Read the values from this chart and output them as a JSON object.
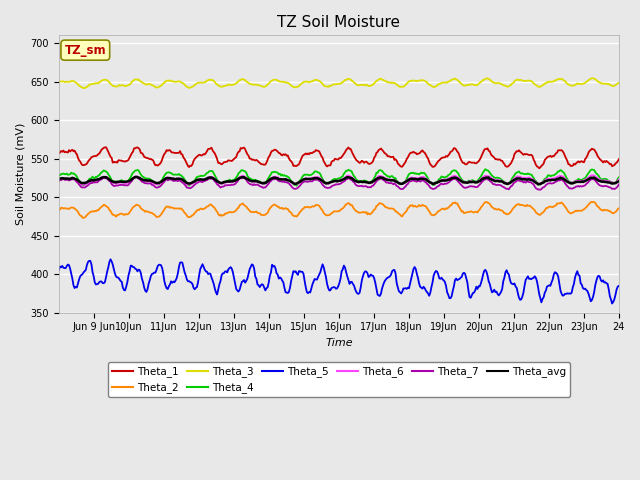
{
  "title": "TZ Soil Moisture",
  "xlabel": "Time",
  "ylabel": "Soil Moisture (mV)",
  "ylim": [
    350,
    710
  ],
  "yticks": [
    350,
    400,
    450,
    500,
    550,
    600,
    650,
    700
  ],
  "x_tick_labels": [
    "Jun 9 Jun",
    "10Jun",
    "11Jun",
    "12Jun",
    "13Jun",
    "14Jun",
    "15Jun",
    "16Jun",
    "17Jun",
    "18Jun",
    "19Jun",
    "20Jun",
    "21Jun",
    "22Jun",
    "23Jun",
    "24"
  ],
  "label_box_text": "TZ_sm",
  "label_box_color": "#ffffbb",
  "label_box_text_color": "#bb0000",
  "background_color": "#e8e8e8",
  "plot_bg_color": "#ebebeb",
  "series_order": [
    "Theta_1",
    "Theta_2",
    "Theta_3",
    "Theta_4",
    "Theta_5",
    "Theta_6",
    "Theta_7",
    "Theta_avg"
  ],
  "series": {
    "Theta_1": {
      "color": "#cc0000",
      "base": 553,
      "amplitude": 9,
      "freq": 1.0,
      "trend": -3
    },
    "Theta_2": {
      "color": "#ff8800",
      "base": 481,
      "amplitude": 6,
      "freq": 1.0,
      "trend": 5
    },
    "Theta_3": {
      "color": "#dddd00",
      "base": 647,
      "amplitude": 4,
      "freq": 1.0,
      "trend": 2
    },
    "Theta_4": {
      "color": "#00cc00",
      "base": 525,
      "amplitude": 7,
      "freq": 1.0,
      "trend": 1
    },
    "Theta_5": {
      "color": "#0000ee",
      "base": 400,
      "amplitude": 14,
      "freq": 1.5,
      "trend": -18
    },
    "Theta_6": {
      "color": "#ff44ff",
      "base": 521,
      "amplitude": 4,
      "freq": 1.0,
      "trend": 2
    },
    "Theta_7": {
      "color": "#aa00aa",
      "base": 519,
      "amplitude": 5,
      "freq": 1.0,
      "trend": -3
    },
    "Theta_avg": {
      "color": "#000000",
      "base": 522,
      "amplitude": 3,
      "freq": 1.0,
      "trend": -1
    }
  },
  "legend_row1": [
    "Theta_1",
    "Theta_2",
    "Theta_3",
    "Theta_4",
    "Theta_5",
    "Theta_6"
  ],
  "legend_row2": [
    "Theta_7",
    "Theta_avg"
  ],
  "title_fontsize": 11,
  "axis_label_fontsize": 8,
  "tick_fontsize": 7
}
